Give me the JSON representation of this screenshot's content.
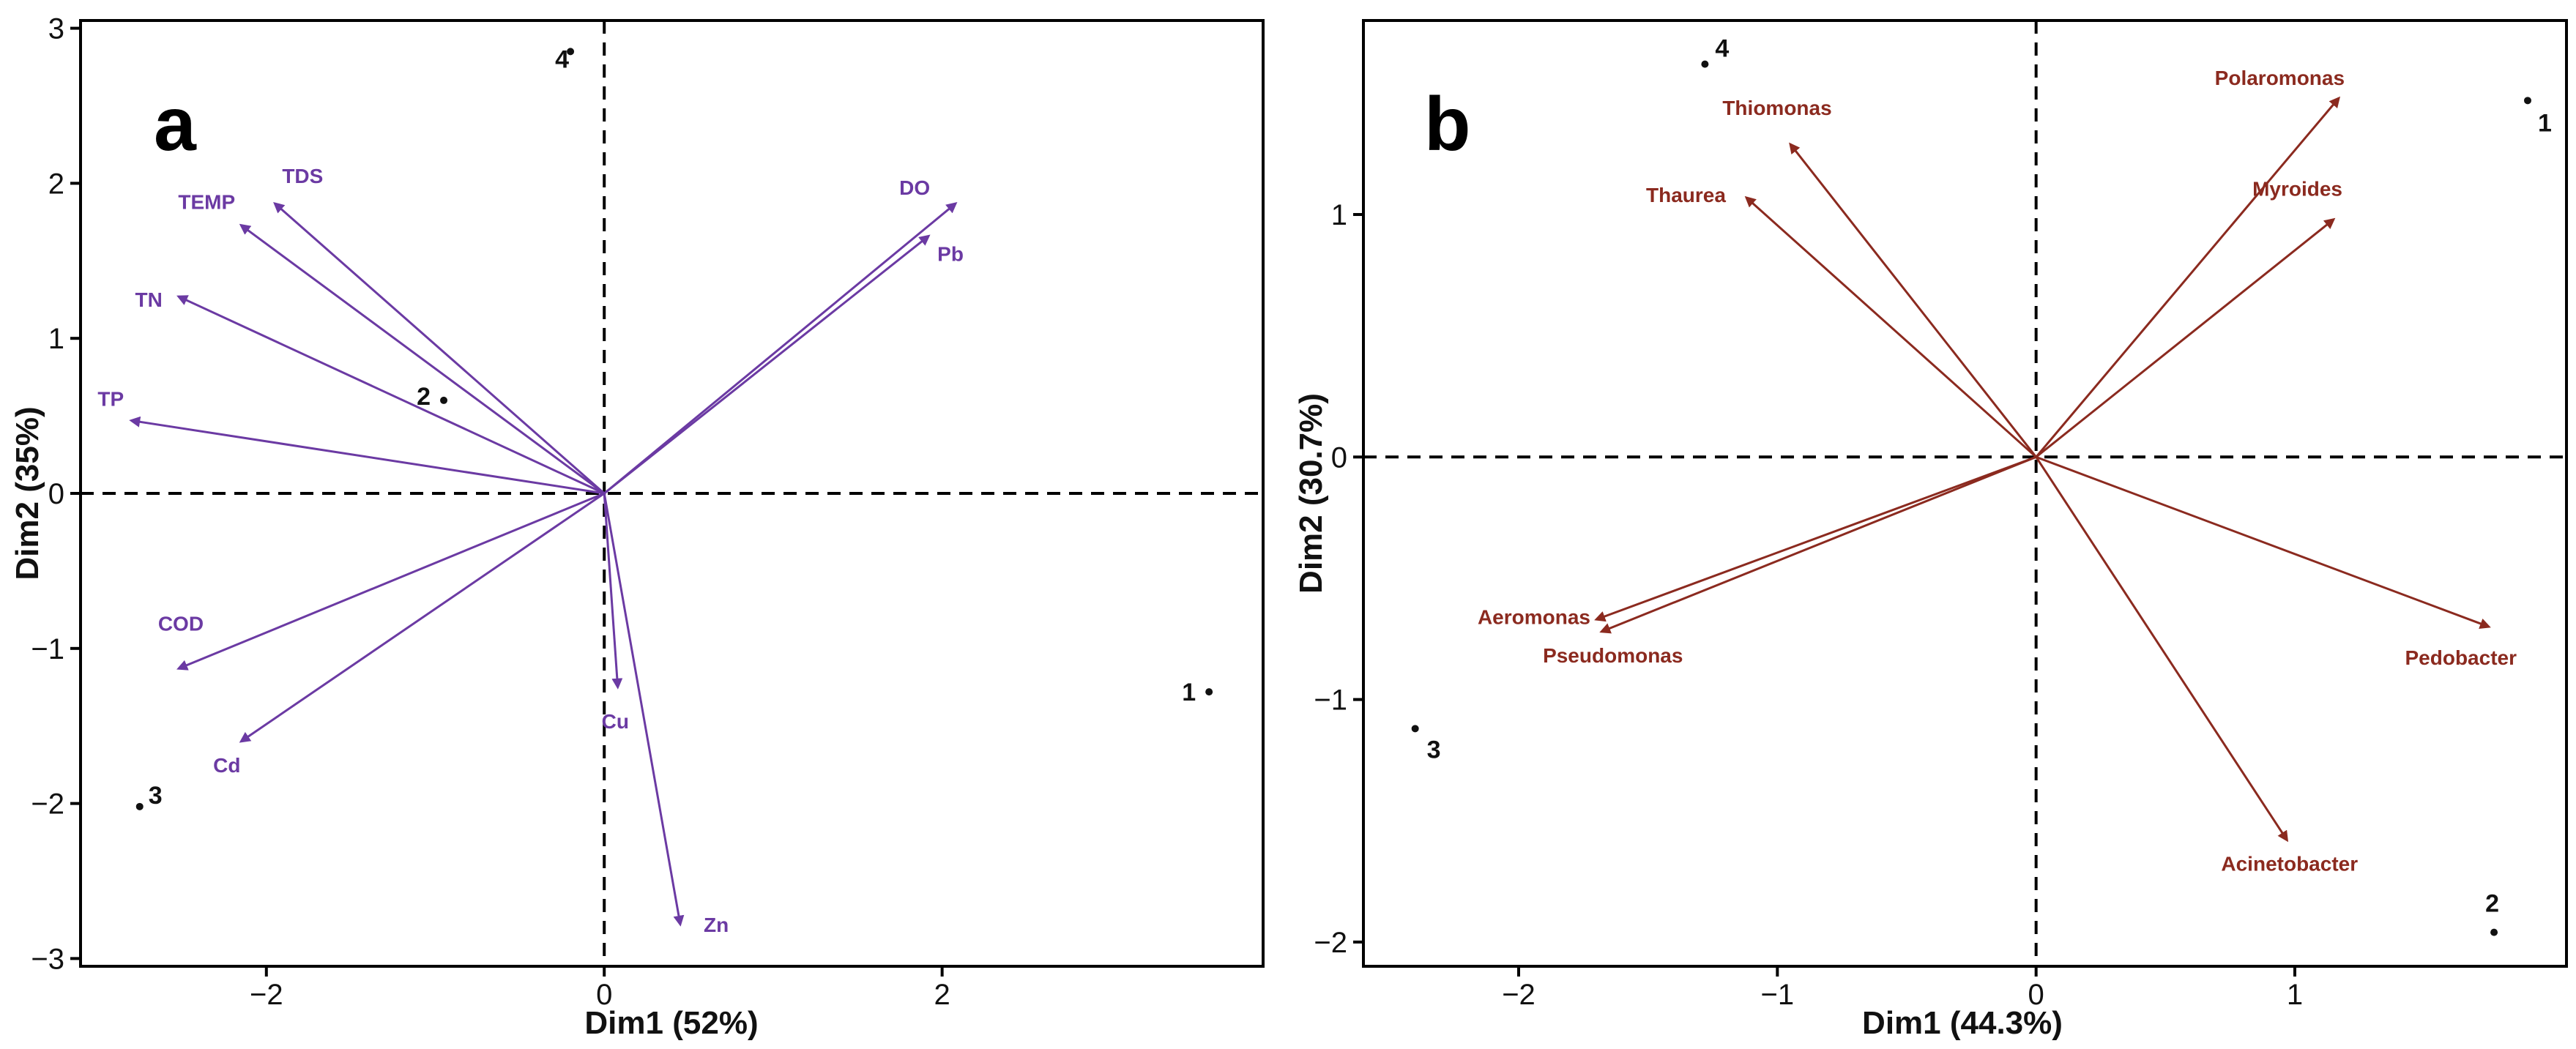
{
  "chart_data": [
    {
      "type": "scatter",
      "subtype": "pca-biplot",
      "panel_label": "a",
      "xlabel": "Dim1 (52%)",
      "ylabel": "Dim2 (35%)",
      "xlim": [
        -3.1,
        3.9
      ],
      "ylim": [
        -3.05,
        3.05
      ],
      "xticks": [
        -2,
        0,
        2
      ],
      "xtick_labels": [
        "−2",
        "0",
        "2"
      ],
      "yticks": [
        -3,
        -2,
        -1,
        0,
        1,
        2,
        3
      ],
      "ytick_labels": [
        "−3",
        "−2",
        "−1",
        "0",
        "1",
        "2",
        "3"
      ],
      "vector_color": "#6b3aa3",
      "vectors": [
        {
          "label": "TDS",
          "x": -1.95,
          "y": 1.87
        },
        {
          "label": "TEMP",
          "x": -2.15,
          "y": 1.73
        },
        {
          "label": "TN",
          "x": -2.52,
          "y": 1.27
        },
        {
          "label": "TP",
          "x": -2.8,
          "y": 0.47
        },
        {
          "label": "DO",
          "x": 2.08,
          "y": 1.87
        },
        {
          "label": "Pb",
          "x": 1.92,
          "y": 1.66
        },
        {
          "label": "COD",
          "x": -2.52,
          "y": -1.13
        },
        {
          "label": "Cd",
          "x": -2.15,
          "y": -1.6
        },
        {
          "label": "Cu",
          "x": 0.08,
          "y": -1.25
        },
        {
          "label": "Zn",
          "x": 0.45,
          "y": -2.78
        }
      ],
      "points": [
        {
          "label": "1",
          "x": 3.58,
          "y": -1.28
        },
        {
          "label": "2",
          "x": -0.95,
          "y": 0.6
        },
        {
          "label": "3",
          "x": -2.75,
          "y": -2.02
        },
        {
          "label": "4",
          "x": -0.2,
          "y": 2.85
        }
      ]
    },
    {
      "type": "scatter",
      "subtype": "pca-biplot",
      "panel_label": "b",
      "xlabel": "Dim1 (44.3%)",
      "ylabel": "Dim2 (30.7%)",
      "xlim": [
        -2.6,
        2.05
      ],
      "ylim": [
        -2.1,
        1.8
      ],
      "xticks": [
        -2,
        -1,
        0,
        1
      ],
      "xtick_labels": [
        "−2",
        "−1",
        "0",
        "1"
      ],
      "yticks": [
        -2,
        -1,
        0,
        1
      ],
      "ytick_labels": [
        "−2",
        "−1",
        "0",
        "1"
      ],
      "vector_color": "#8b2a1f",
      "vectors": [
        {
          "label": "Polaromonas",
          "x": 1.17,
          "y": 1.48
        },
        {
          "label": "Myroides",
          "x": 1.15,
          "y": 0.98
        },
        {
          "label": "Thiomonas",
          "x": -0.95,
          "y": 1.29
        },
        {
          "label": "Thaurea",
          "x": -1.12,
          "y": 1.07
        },
        {
          "label": "Aeromonas",
          "x": -1.7,
          "y": -0.67
        },
        {
          "label": "Pseudomonas",
          "x": -1.68,
          "y": -0.72
        },
        {
          "label": "Pedobacter",
          "x": 1.75,
          "y": -0.7
        },
        {
          "label": "Acinetobacter",
          "x": 0.97,
          "y": -1.58
        }
      ],
      "points": [
        {
          "label": "1",
          "x": 1.9,
          "y": 1.47
        },
        {
          "label": "2",
          "x": 1.77,
          "y": -1.96
        },
        {
          "label": "3",
          "x": -2.4,
          "y": -1.12
        },
        {
          "label": "4",
          "x": -1.28,
          "y": 1.62
        }
      ]
    }
  ]
}
